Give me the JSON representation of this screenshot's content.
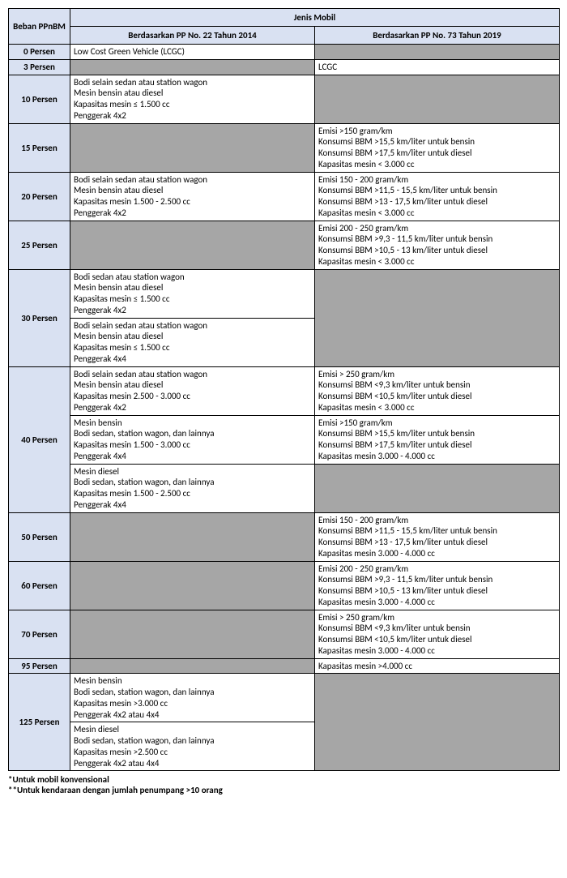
{
  "colors": {
    "header_bg": "#d9e1f2",
    "gray_bg": "#a6a6a6",
    "border": "#000000",
    "text": "#000000",
    "page_bg": "#ffffff"
  },
  "typography": {
    "family": "Calibri, Arial, sans-serif",
    "size_pt": 8.5
  },
  "headers": {
    "beban": "Beban PPnBM",
    "jenis": "Jenis Mobil",
    "pp22": "Berdasarkan PP No. 22 Tahun 2014",
    "pp73": "Berdasarkan PP No. 73 Tahun 2019"
  },
  "rows": [
    {
      "beban": "0 Persen",
      "pp22": [
        [
          "Low Cost Green Vehicle (LCGC)"
        ]
      ],
      "pp73": "gray"
    },
    {
      "beban": "3 Persen",
      "pp22": "gray",
      "pp73": [
        [
          "LCGC"
        ]
      ]
    },
    {
      "beban": "10 Persen",
      "pp22": [
        [
          "Bodi selain sedan atau station wagon",
          "Mesin bensin atau diesel",
          "Kapasitas mesin ≤ 1.500 cc",
          "Penggerak 4x2"
        ]
      ],
      "pp73": "gray"
    },
    {
      "beban": "15 Persen",
      "pp22": "gray",
      "pp73": [
        [
          "Emisi >150 gram/km",
          "Konsumsi BBM >15,5 km/liter untuk bensin",
          "Konsumsi BBM >17,5 km/liter untuk diesel",
          "Kapasitas mesin < 3.000 cc"
        ]
      ]
    },
    {
      "beban": "20 Persen",
      "pp22": [
        [
          "Bodi selain sedan atau station wagon",
          "Mesin bensin atau diesel",
          "Kapasitas mesin 1.500 - 2.500 cc",
          "Penggerak 4x2"
        ]
      ],
      "pp73": [
        [
          "Emisi 150 - 200 gram/km",
          "Konsumsi BBM >11,5 - 15,5 km/liter untuk bensin",
          "Konsumsi BBM >13 - 17,5 km/liter untuk diesel",
          "Kapasitas mesin < 3.000 cc"
        ]
      ]
    },
    {
      "beban": "25 Persen",
      "pp22": "gray",
      "pp73": [
        [
          "Emisi 200 - 250 gram/km",
          "Konsumsi BBM >9,3 - 11,5 km/liter untuk bensin",
          "Konsumsi BBM >10,5 - 13 km/liter untuk diesel",
          "Kapasitas mesin < 3.000 cc"
        ]
      ]
    },
    {
      "beban": "30 Persen",
      "pp22": [
        [
          "Bodi sedan atau station wagon",
          "Mesin bensin atau diesel",
          "Kapasitas mesin ≤ 1.500 cc",
          "Penggerak 4x2"
        ],
        [
          "Bodi selain sedan atau station wagon",
          "Mesin bensin atau diesel",
          "Kapasitas mesin ≤ 1.500 cc",
          "Penggerak 4x4"
        ]
      ],
      "pp73": "gray"
    },
    {
      "beban": "40 Persen",
      "pp22": [
        [
          "Bodi selain sedan atau station wagon",
          "Mesin bensin atau diesel",
          "Kapasitas mesin 2.500 - 3.000 cc",
          "Penggerak 4x2"
        ],
        [
          "Mesin bensin",
          "Bodi sedan, station wagon, dan lainnya",
          "Kapasitas mesin 1.500 - 3.000 cc",
          "Penggerak 4x4"
        ],
        [
          "Mesin diesel",
          "Bodi sedan, station wagon, dan lainnya",
          "Kapasitas mesin 1.500 - 2.500 cc",
          "Penggerak 4x4"
        ]
      ],
      "pp73": [
        [
          "Emisi > 250 gram/km",
          "Konsumsi BBM <9,3 km/liter untuk bensin",
          "Konsumsi BBM <10,5 km/liter untuk diesel",
          "Kapasitas mesin < 3.000 cc"
        ],
        [
          "Emisi >150 gram/km",
          "Konsumsi BBM >15,5 km/liter untuk bensin",
          "Konsumsi BBM >17,5 km/liter untuk diesel",
          "Kapasitas mesin 3.000 - 4.000 cc"
        ],
        "gray"
      ]
    },
    {
      "beban": "50 Persen",
      "pp22": "gray",
      "pp73": [
        [
          "Emisi 150 - 200 gram/km",
          "Konsumsi BBM >11,5 - 15,5 km/liter untuk bensin",
          "Konsumsi BBM >13 - 17,5 km/liter untuk diesel",
          "Kapasitas mesin 3.000 - 4.000 cc"
        ]
      ]
    },
    {
      "beban": "60 Persen",
      "pp22": "gray",
      "pp73": [
        [
          "Emisi 200 - 250 gram/km",
          "Konsumsi BBM >9,3 - 11,5 km/liter untuk bensin",
          "Konsumsi BBM >10,5 - 13 km/liter untuk diesel",
          "Kapasitas mesin 3.000 - 4.000 cc"
        ]
      ]
    },
    {
      "beban": "70 Persen",
      "pp22": "gray",
      "pp73": [
        [
          "Emisi > 250 gram/km",
          "Konsumsi BBM <9,3 km/liter untuk bensin",
          "Konsumsi BBM <10,5 km/liter untuk diesel",
          "Kapasitas mesin 3.000 - 4.000 cc"
        ]
      ]
    },
    {
      "beban": "95 Persen",
      "pp22": "gray",
      "pp73": [
        [
          "Kapasitas mesin >4.000 cc"
        ]
      ]
    },
    {
      "beban": "125 Persen",
      "pp22": [
        [
          "Mesin bensin",
          "Bodi sedan, station wagon, dan lainnya",
          "Kapasitas mesin >3.000 cc",
          "Penggerak 4x2 atau 4x4"
        ],
        [
          "Mesin diesel",
          "Bodi sedan, station wagon, dan lainnya",
          "Kapasitas mesin >2.500 cc",
          "Penggerak 4x2 atau 4x4"
        ]
      ],
      "pp73": "gray"
    }
  ],
  "footnotes": [
    "*Untuk mobil konvensional",
    "**Untuk kendaraan dengan jumlah penumpang >10 orang"
  ]
}
